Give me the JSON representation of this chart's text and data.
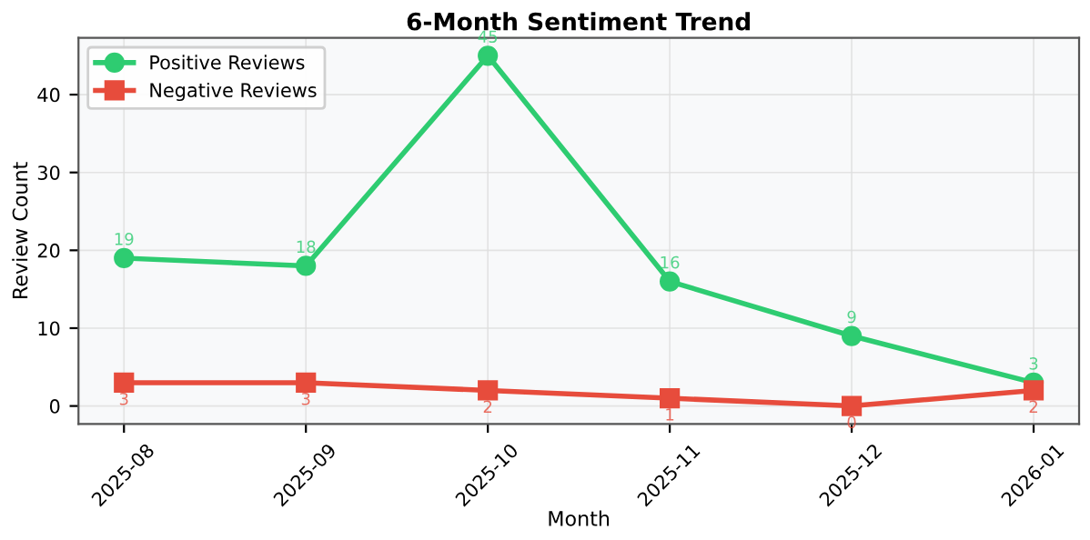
{
  "chart_data": {
    "type": "line",
    "title": "6-Month Sentiment Trend",
    "xlabel": "Month",
    "ylabel": "Review Count",
    "categories": [
      "2025-08",
      "2025-09",
      "2025-10",
      "2025-11",
      "2025-12",
      "2026-01"
    ],
    "series": [
      {
        "name": "Positive Reviews",
        "color": "#2ecc71",
        "marker": "circle",
        "values": [
          19,
          18,
          45,
          16,
          9,
          3
        ]
      },
      {
        "name": "Negative Reviews",
        "color": "#e74c3c",
        "marker": "square",
        "values": [
          3,
          3,
          2,
          1,
          0,
          2
        ]
      }
    ],
    "ylim": [
      -2.3,
      47.3
    ],
    "yticks": [
      0,
      10,
      20,
      30,
      40
    ],
    "grid": true,
    "legend": "top left",
    "data_labels": true,
    "line_style": "solid"
  }
}
